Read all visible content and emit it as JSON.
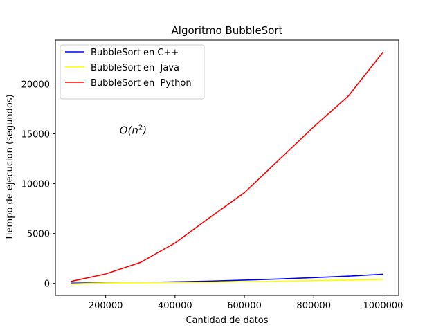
{
  "chart_data": {
    "type": "line",
    "title": "Algoritmo BubbleSort",
    "xlabel": "Cantidad de datos",
    "ylabel": "Tiempo de ejecucion (segundos)",
    "xlim": [
      55000,
      1045000
    ],
    "ylim": [
      -1200,
      24400
    ],
    "x_ticks": [
      200000,
      400000,
      600000,
      800000,
      1000000
    ],
    "x_tick_labels": [
      "200000",
      "400000",
      "600000",
      "800000",
      "1000000"
    ],
    "y_ticks": [
      0,
      5000,
      10000,
      15000,
      20000
    ],
    "y_tick_labels": [
      "0",
      "5000",
      "10000",
      "15000",
      "20000"
    ],
    "grid": false,
    "legend_position": "top-left",
    "annotation": {
      "text": "O(n2)",
      "x": 240000,
      "y": 15000
    },
    "x": [
      100000,
      200000,
      300000,
      400000,
      500000,
      600000,
      700000,
      800000,
      900000,
      1000000
    ],
    "series": [
      {
        "name": "BubbleSort en C++",
        "color": "#0000ff",
        "values": [
          30,
          60,
          100,
          160,
          230,
          330,
          440,
          580,
          730,
          920
        ]
      },
      {
        "name": "BubbleSort en  Java",
        "color": "#ffff00",
        "values": [
          -50,
          50,
          70,
          100,
          130,
          170,
          220,
          270,
          320,
          400
        ]
      },
      {
        "name": "BubbleSort en  Python",
        "color": "#ff0000",
        "values": [
          200,
          950,
          2100,
          4050,
          6600,
          9100,
          12400,
          15700,
          18800,
          23200
        ]
      }
    ]
  }
}
